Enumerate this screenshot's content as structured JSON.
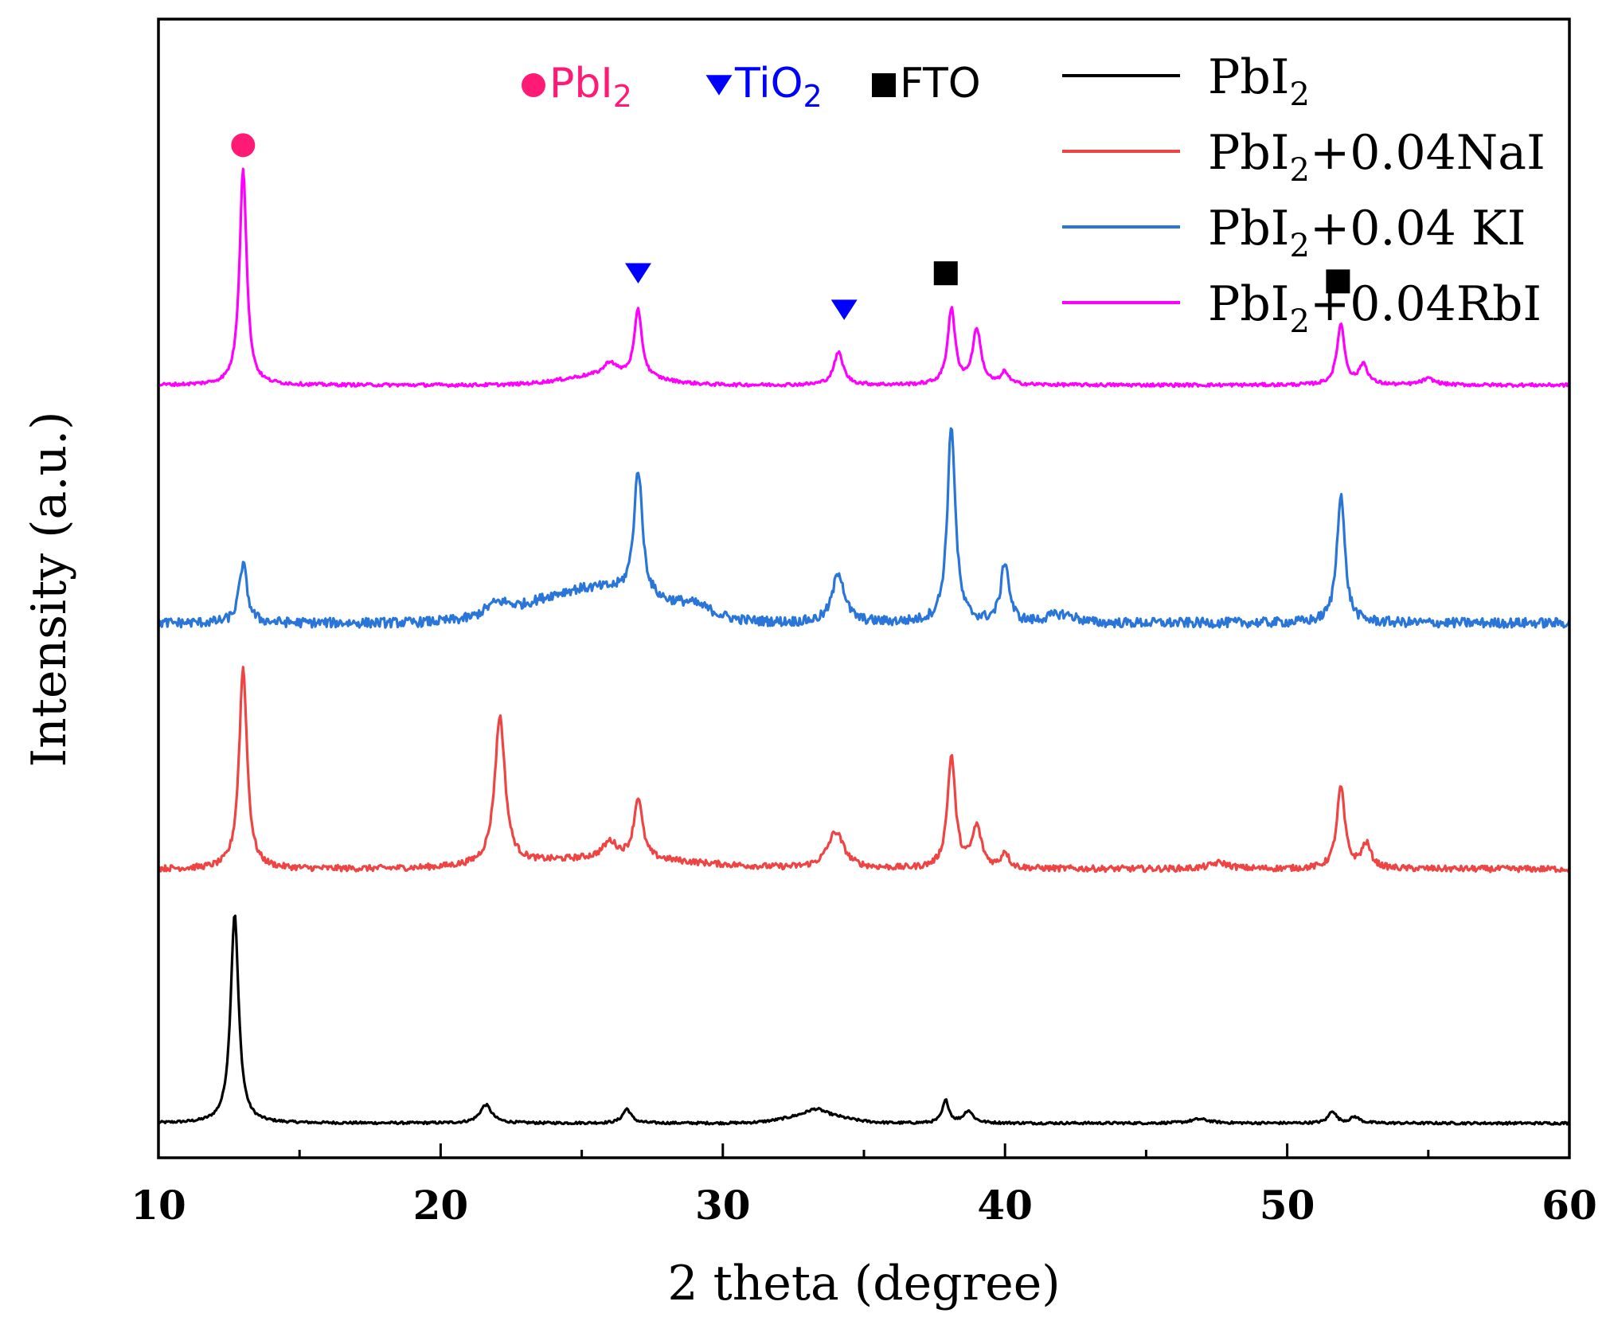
{
  "chart_data": {
    "type": "line",
    "title": "",
    "xlabel": "2 theta (degree)",
    "ylabel": "Intensity (a.u.)",
    "xlim": [
      10,
      60
    ],
    "ylim": [
      0,
      5.6
    ],
    "x_ticks": [
      "10",
      "20",
      "30",
      "40",
      "50",
      "60"
    ],
    "x_tick_values": [
      10,
      20,
      30,
      40,
      50,
      60
    ],
    "y_ticks_shown": false,
    "x_range_data": [
      10,
      60
    ],
    "series": [
      {
        "name": "PbI2",
        "name_base": "PbI",
        "name_sub": "2",
        "name_suffix": "",
        "color": "#000000",
        "baseline": 0.17,
        "noise": 0.006,
        "background": [
          {
            "center": 33.3,
            "height": 0.04,
            "width": 1.0
          }
        ],
        "peaks": [
          {
            "center": 12.7,
            "height": 1.03,
            "width": 0.17
          },
          {
            "center": 21.6,
            "height": 0.09,
            "width": 0.25
          },
          {
            "center": 26.6,
            "height": 0.07,
            "width": 0.18
          },
          {
            "center": 33.3,
            "height": 0.03,
            "width": 0.4
          },
          {
            "center": 37.9,
            "height": 0.11,
            "width": 0.14
          },
          {
            "center": 38.7,
            "height": 0.06,
            "width": 0.2
          },
          {
            "center": 46.9,
            "height": 0.02,
            "width": 0.4
          },
          {
            "center": 51.6,
            "height": 0.06,
            "width": 0.16
          },
          {
            "center": 52.4,
            "height": 0.03,
            "width": 0.2
          }
        ]
      },
      {
        "name": "PbI2+0.04NaI",
        "name_base": "PbI",
        "name_sub": "2",
        "name_suffix": "+0.04NaI",
        "color": "#ee4444",
        "baseline": 1.42,
        "noise": 0.015,
        "background": [
          {
            "center": 26.0,
            "height": 0.05,
            "width": 3.0
          }
        ],
        "peaks": [
          {
            "center": 13.0,
            "height": 0.99,
            "width": 0.17
          },
          {
            "center": 22.1,
            "height": 0.73,
            "width": 0.22
          },
          {
            "center": 26.0,
            "height": 0.08,
            "width": 0.3
          },
          {
            "center": 27.0,
            "height": 0.3,
            "width": 0.18
          },
          {
            "center": 34.0,
            "height": 0.18,
            "width": 0.35
          },
          {
            "center": 38.1,
            "height": 0.55,
            "width": 0.17
          },
          {
            "center": 39.0,
            "height": 0.2,
            "width": 0.2
          },
          {
            "center": 40.0,
            "height": 0.08,
            "width": 0.15
          },
          {
            "center": 47.6,
            "height": 0.03,
            "width": 0.4
          },
          {
            "center": 51.9,
            "height": 0.4,
            "width": 0.17
          },
          {
            "center": 52.8,
            "height": 0.12,
            "width": 0.2
          }
        ]
      },
      {
        "name": "PbI2+0.04 KI",
        "name_base": "PbI",
        "name_sub": "2",
        "name_suffix": "+0.04 KI",
        "color": "#2a75d8",
        "baseline": 2.63,
        "noise": 0.024,
        "background": [
          {
            "center": 25.5,
            "height": 0.17,
            "width": 2.3
          },
          {
            "center": 22.0,
            "height": 0.05,
            "width": 0.4
          },
          {
            "center": 29.0,
            "height": 0.04,
            "width": 0.6
          },
          {
            "center": 42.0,
            "height": 0.04,
            "width": 0.5
          }
        ],
        "peaks": [
          {
            "center": 13.0,
            "height": 0.29,
            "width": 0.17
          },
          {
            "center": 27.0,
            "height": 0.62,
            "width": 0.18
          },
          {
            "center": 34.1,
            "height": 0.25,
            "width": 0.25
          },
          {
            "center": 38.1,
            "height": 0.97,
            "width": 0.17
          },
          {
            "center": 40.0,
            "height": 0.3,
            "width": 0.17
          },
          {
            "center": 51.9,
            "height": 0.64,
            "width": 0.17
          }
        ]
      },
      {
        "name": "PbI2+0.04RbI",
        "name_base": "PbI",
        "name_sub": "2",
        "name_suffix": "+0.04RbI",
        "color": "#ff00ff",
        "baseline": 3.8,
        "noise": 0.008,
        "background": [
          {
            "center": 26.0,
            "height": 0.05,
            "width": 1.5
          }
        ],
        "peaks": [
          {
            "center": 13.0,
            "height": 1.07,
            "width": 0.15
          },
          {
            "center": 26.0,
            "height": 0.06,
            "width": 0.25
          },
          {
            "center": 27.0,
            "height": 0.33,
            "width": 0.16
          },
          {
            "center": 34.1,
            "height": 0.16,
            "width": 0.2
          },
          {
            "center": 38.1,
            "height": 0.37,
            "width": 0.16
          },
          {
            "center": 39.0,
            "height": 0.27,
            "width": 0.18
          },
          {
            "center": 40.0,
            "height": 0.06,
            "width": 0.15
          },
          {
            "center": 51.9,
            "height": 0.3,
            "width": 0.16
          },
          {
            "center": 52.7,
            "height": 0.1,
            "width": 0.18
          },
          {
            "center": 55.0,
            "height": 0.03,
            "width": 0.3
          }
        ]
      }
    ],
    "markers": [
      {
        "type": "circle",
        "phase": "PbI2",
        "color": "#ff1a75",
        "x": 13.0,
        "y": 4.98
      },
      {
        "type": "triangle-down",
        "phase": "TiO2",
        "color": "#0000ff",
        "x": 27.0,
        "y": 4.35
      },
      {
        "type": "triangle-down",
        "phase": "TiO2",
        "color": "#0000ff",
        "x": 34.3,
        "y": 4.17
      },
      {
        "type": "square",
        "phase": "FTO",
        "color": "#000000",
        "x": 37.9,
        "y": 4.35
      },
      {
        "type": "square",
        "phase": "FTO",
        "color": "#000000",
        "x": 51.8,
        "y": 4.31
      }
    ],
    "marker_key": [
      {
        "type": "circle",
        "color": "#ff1a75",
        "label": "PbI",
        "sub": "2"
      },
      {
        "type": "triangle-down",
        "color": "#0000ff",
        "label": "TiO",
        "sub": "2"
      },
      {
        "type": "square",
        "color": "#000000",
        "label": "FTO",
        "sub": ""
      }
    ],
    "legend_position": "top-right"
  }
}
